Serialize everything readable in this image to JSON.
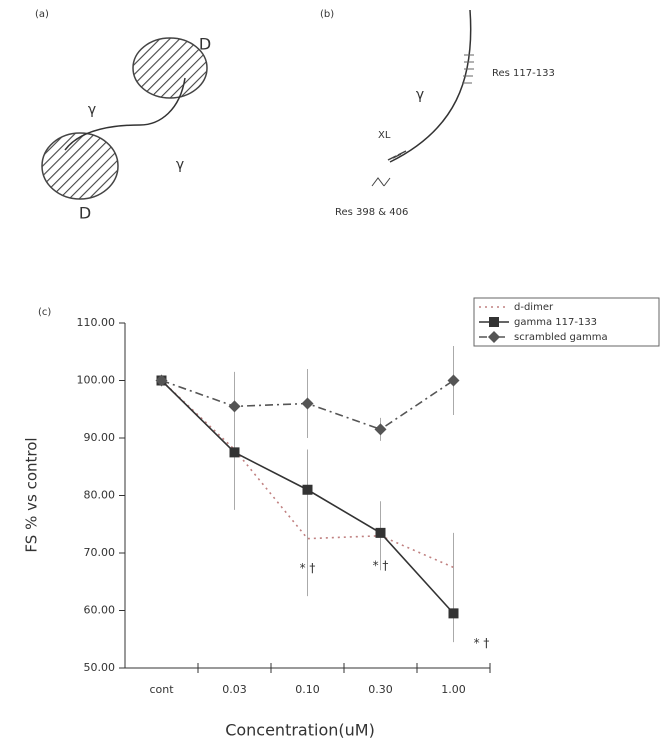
{
  "panel_a": {
    "label": "(a)",
    "domain_top": "D",
    "domain_bottom": "D",
    "gamma_left": "γ",
    "gamma_right": "γ"
  },
  "panel_b": {
    "label": "(b)",
    "gamma": "γ",
    "top_residues": "Res 117-133",
    "crosslink": "XL",
    "bottom_residues": "Res 398 & 406"
  },
  "chart_data": {
    "type": "line",
    "panel_label": "(c)",
    "x_label": "Concentration(uM)",
    "y_label": "FS % vs control",
    "categories": [
      "cont",
      "0.03",
      "0.10",
      "0.30",
      "1.00"
    ],
    "ylim": [
      50,
      110
    ],
    "yticks": [
      {
        "value": 50,
        "label": "50.00"
      },
      {
        "value": 60,
        "label": "60.00"
      },
      {
        "value": 70,
        "label": "70.00"
      },
      {
        "value": 80,
        "label": "80.00"
      },
      {
        "value": 90,
        "label": "90.00"
      },
      {
        "value": 100,
        "label": "100.00"
      },
      {
        "value": 110,
        "label": "110.00"
      }
    ],
    "legend_position": "upper right",
    "series": [
      {
        "name": "d-dimer",
        "color": "#c08080",
        "dash": "dotted",
        "marker": "none",
        "values": [
          100,
          88,
          72.5,
          73,
          67.5
        ],
        "errors": [
          0,
          8,
          10,
          6,
          6
        ]
      },
      {
        "name": "gamma 117-133",
        "color": "#333333",
        "dash": "solid",
        "marker": "square",
        "values": [
          100,
          87.5,
          81,
          73.5,
          59.5
        ],
        "errors": [
          0,
          10,
          7,
          5,
          5
        ]
      },
      {
        "name": "scrambled gamma",
        "color": "#555555",
        "dash": "dashdot",
        "marker": "diamond",
        "values": [
          100,
          95.5,
          96,
          91.5,
          100
        ],
        "errors": [
          0,
          6,
          6,
          2,
          6
        ]
      }
    ],
    "annotations": [
      {
        "x": "0.10",
        "text": "* †"
      },
      {
        "x": "0.30",
        "text": "* †"
      },
      {
        "x": "1.00",
        "text": "* †"
      }
    ]
  }
}
